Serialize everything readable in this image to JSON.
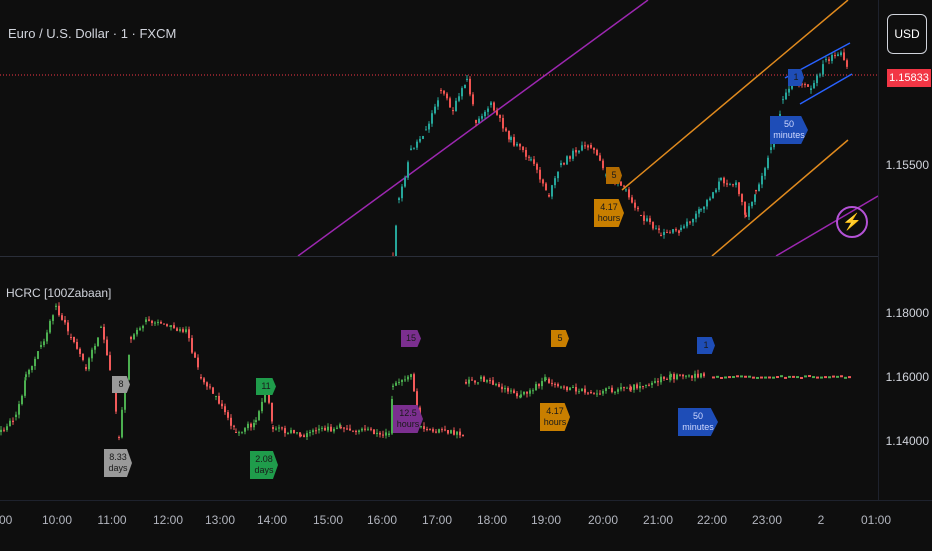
{
  "header": {
    "title": "Euro / U.S. Dollar · 1 · FXCM",
    "currency_button": "USD"
  },
  "price_axis": {
    "current_price": "1.15833",
    "main_labels": [
      "1.15500"
    ],
    "indicator_labels": [
      "1.18000",
      "1.16000",
      "1.14000"
    ]
  },
  "indicator": {
    "name": "HCRC [100Zabaan]"
  },
  "time_axis": {
    "ticks": [
      ":00",
      "10:00",
      "11:00",
      "12:00",
      "13:00",
      "14:00",
      "15:00",
      "16:00",
      "17:00",
      "18:00",
      "19:00",
      "20:00",
      "21:00",
      "22:00",
      "23:00",
      "2",
      "01:00"
    ]
  },
  "markers": {
    "main_top": [
      {
        "text": "5",
        "color": "#b26b00"
      },
      {
        "text": "1",
        "color": "#1e4db7"
      }
    ],
    "main_bottom": [
      {
        "line1": "4.17",
        "line2": "hours",
        "color": "#c97f00"
      },
      {
        "line1": "50",
        "line2": "minutes",
        "color": "#1e4db7"
      }
    ],
    "ind_top": [
      {
        "text": "8",
        "color": "#9a9a9a"
      },
      {
        "text": "11",
        "color": "#1f9c4b"
      },
      {
        "text": "15",
        "color": "#7b2f8f"
      },
      {
        "text": "5",
        "color": "#c97f00"
      },
      {
        "text": "1",
        "color": "#1e4db7"
      }
    ],
    "ind_bottom": [
      {
        "line1": "8.33",
        "line2": "days",
        "color": "#9a9a9a"
      },
      {
        "line1": "2.08",
        "line2": "days",
        "color": "#1f9c4b"
      },
      {
        "line1": "12.5",
        "line2": "hours",
        "color": "#7b2f8f"
      },
      {
        "line1": "4.17",
        "line2": "hours",
        "color": "#c97f00"
      },
      {
        "line1": "50",
        "line2": "minutes",
        "color": "#1e4db7"
      }
    ]
  },
  "colors": {
    "up": "#26a69a",
    "down": "#ef5350",
    "ind_up": "#4caf50",
    "ind_down": "#f25a5a",
    "channel_purple": "#9c27b0",
    "channel_orange": "#e08a1e",
    "channel_blue": "#2962ff",
    "price_line": "#f23645"
  }
}
